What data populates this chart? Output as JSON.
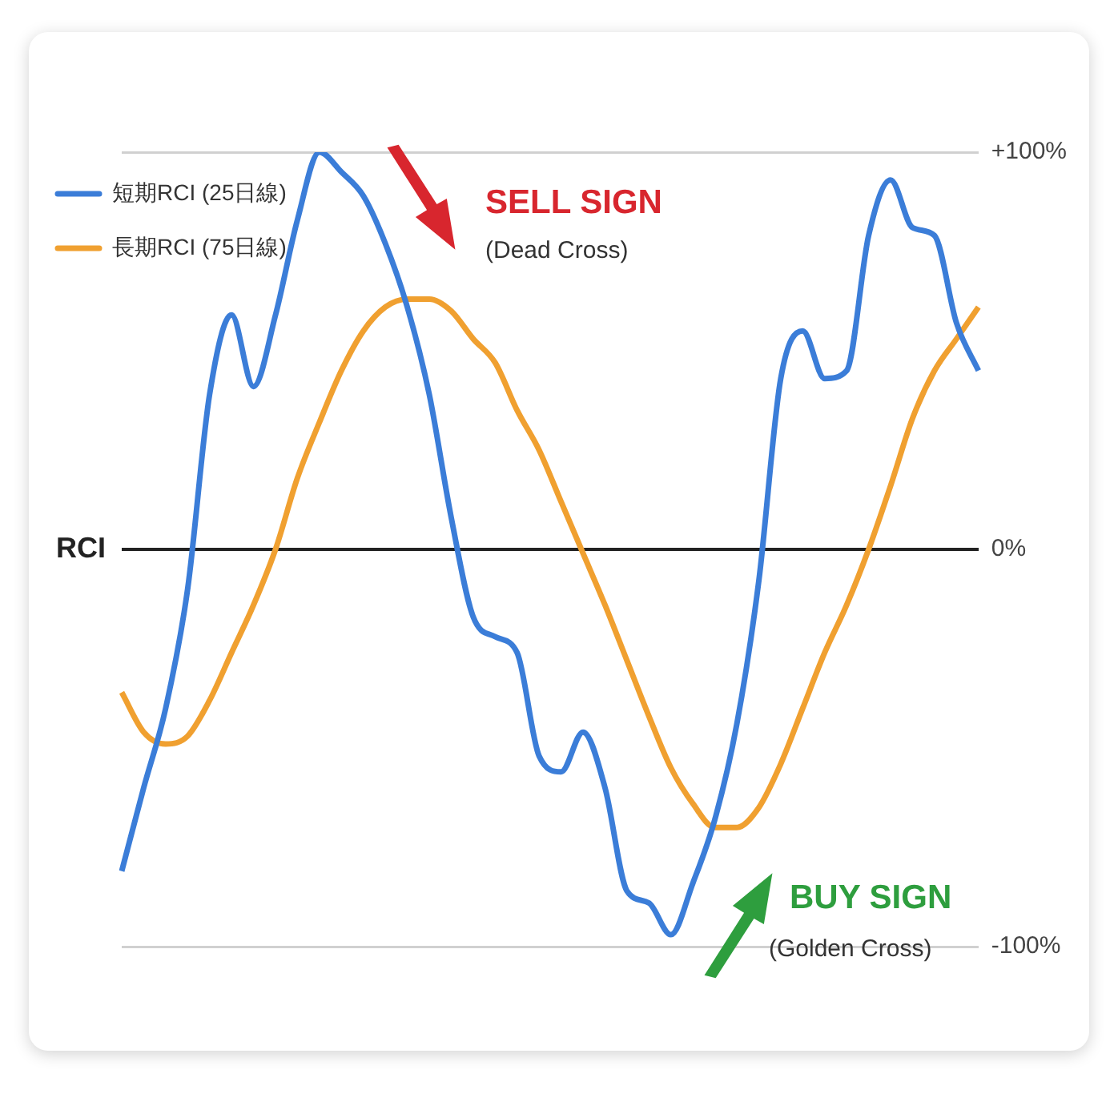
{
  "chart_data": {
    "type": "line",
    "ylabel": "RCI",
    "categories": [
      null,
      null,
      null,
      null,
      null,
      null,
      null,
      null,
      null,
      null,
      null,
      null,
      null,
      null,
      null,
      null,
      null,
      null,
      null,
      null,
      null,
      null,
      null,
      null,
      null,
      null,
      null,
      null,
      null,
      null,
      null,
      null,
      null,
      null,
      null,
      null,
      null,
      null,
      null,
      null
    ],
    "series": [
      {
        "name": "短期RCI (25日線)",
        "color": "#3b7dd8",
        "values": [
          -81,
          -60,
          -40,
          -10,
          39,
          59,
          41,
          59,
          83,
          100,
          95,
          89,
          77,
          61,
          39,
          8,
          -17,
          -22,
          -26,
          -52,
          -56,
          -46,
          -60,
          -86,
          -89,
          -97,
          -84,
          -68,
          -44,
          -8,
          43,
          55,
          43,
          45,
          79,
          93,
          81,
          79,
          57,
          45
        ]
      },
      {
        "name": "長期RCI (75日線)",
        "color": "#f0a030",
        "values": [
          -36,
          -46,
          -49,
          -47,
          -38,
          -26,
          -14,
          0,
          18,
          32,
          45,
          55,
          61,
          63,
          63,
          60,
          53,
          47,
          35,
          25,
          12,
          -1,
          -14,
          -28,
          -42,
          -55,
          -64,
          -70,
          -70,
          -65,
          -54,
          -40,
          -26,
          -14,
          0,
          16,
          33,
          45,
          53,
          61
        ]
      }
    ],
    "ylim": [
      -100,
      100
    ],
    "yticks": [
      {
        "value": -100,
        "label": "-100%"
      },
      {
        "value": 0,
        "label": "0%"
      },
      {
        "value": 100,
        "label": "+100%"
      }
    ],
    "grid": "y",
    "legend": "top left",
    "marker": "none",
    "line_style": "solid",
    "annotations": [
      "SELL SIGN",
      "(Dead Cross)",
      "BUY SIGN",
      "(Golden Cross)"
    ]
  }
}
